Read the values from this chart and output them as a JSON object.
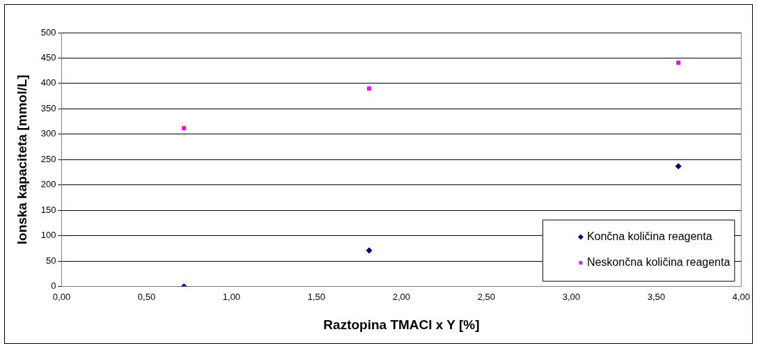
{
  "chart_data": {
    "type": "scatter",
    "xlabel": "Raztopina TMACl x Y [%]",
    "ylabel": "Ionska kapaciteta [mmol/L]",
    "series": [
      {
        "name": "Končna količina reagenta",
        "color": "#000080",
        "marker": "diamond",
        "x": [
          0.72,
          1.81,
          3.63
        ],
        "values": [
          0,
          71,
          237
        ]
      },
      {
        "name": "Neskončna količina reagenta",
        "color": "#ff00ff",
        "marker": "square",
        "x": [
          0.72,
          1.81,
          3.63
        ],
        "values": [
          312,
          390,
          441
        ]
      }
    ],
    "xlim": [
      0,
      4
    ],
    "xticks": [
      {
        "value": 0,
        "label": "0,00"
      },
      {
        "value": 0.5,
        "label": "0,50"
      },
      {
        "value": 1,
        "label": "1,00"
      },
      {
        "value": 1.5,
        "label": "1,50"
      },
      {
        "value": 2,
        "label": "2,00"
      },
      {
        "value": 2.5,
        "label": "2,50"
      },
      {
        "value": 3,
        "label": "3,00"
      },
      {
        "value": 3.5,
        "label": "3,50"
      },
      {
        "value": 4,
        "label": "4,00"
      }
    ],
    "ylim": [
      0,
      500
    ],
    "yticks": [
      0,
      50,
      100,
      150,
      200,
      250,
      300,
      350,
      400,
      450,
      500
    ],
    "grid": "y",
    "legend": "bottom right"
  }
}
